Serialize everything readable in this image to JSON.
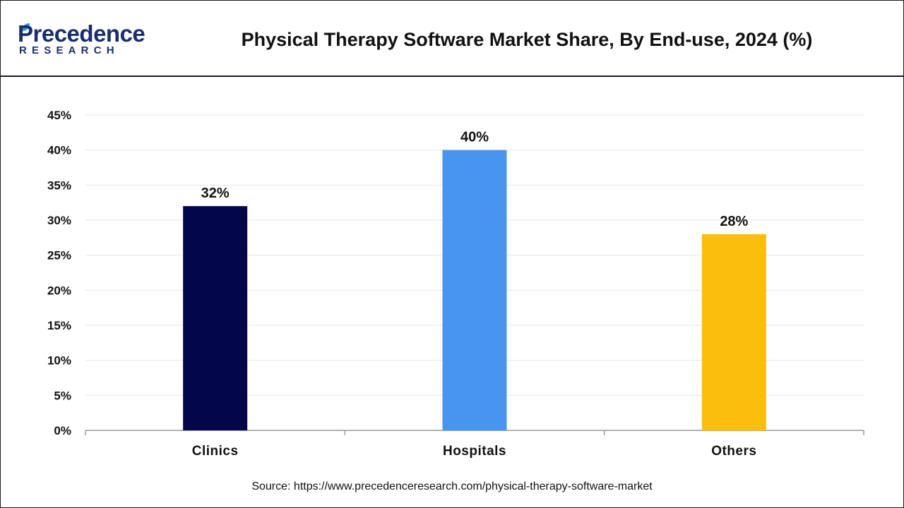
{
  "header": {
    "logo_main": "Precedence",
    "logo_sub": "RESEARCH",
    "title": "Physical Therapy Software Market Share, By End-use, 2024 (%)"
  },
  "chart_data": {
    "type": "bar",
    "title": "Physical Therapy Software Market Share, By End-use, 2024 (%)",
    "categories": [
      "Clinics",
      "Hospitals",
      "Others"
    ],
    "values": [
      32,
      40,
      28
    ],
    "value_labels": [
      "32%",
      "40%",
      "28%"
    ],
    "colors": [
      "#03064a",
      "#4895ef",
      "#fcbe0c"
    ],
    "ylim": [
      0,
      45
    ],
    "yticks": [
      0,
      5,
      10,
      15,
      20,
      25,
      30,
      35,
      40,
      45
    ],
    "ytick_labels": [
      "0%",
      "5%",
      "10%",
      "15%",
      "20%",
      "25%",
      "30%",
      "35%",
      "40%",
      "45%"
    ],
    "xlabel": "",
    "ylabel": "",
    "grid": true,
    "legend": "none"
  },
  "footer": {
    "source": "Source: https://www.precedenceresearch.com/physical-therapy-software-market"
  }
}
